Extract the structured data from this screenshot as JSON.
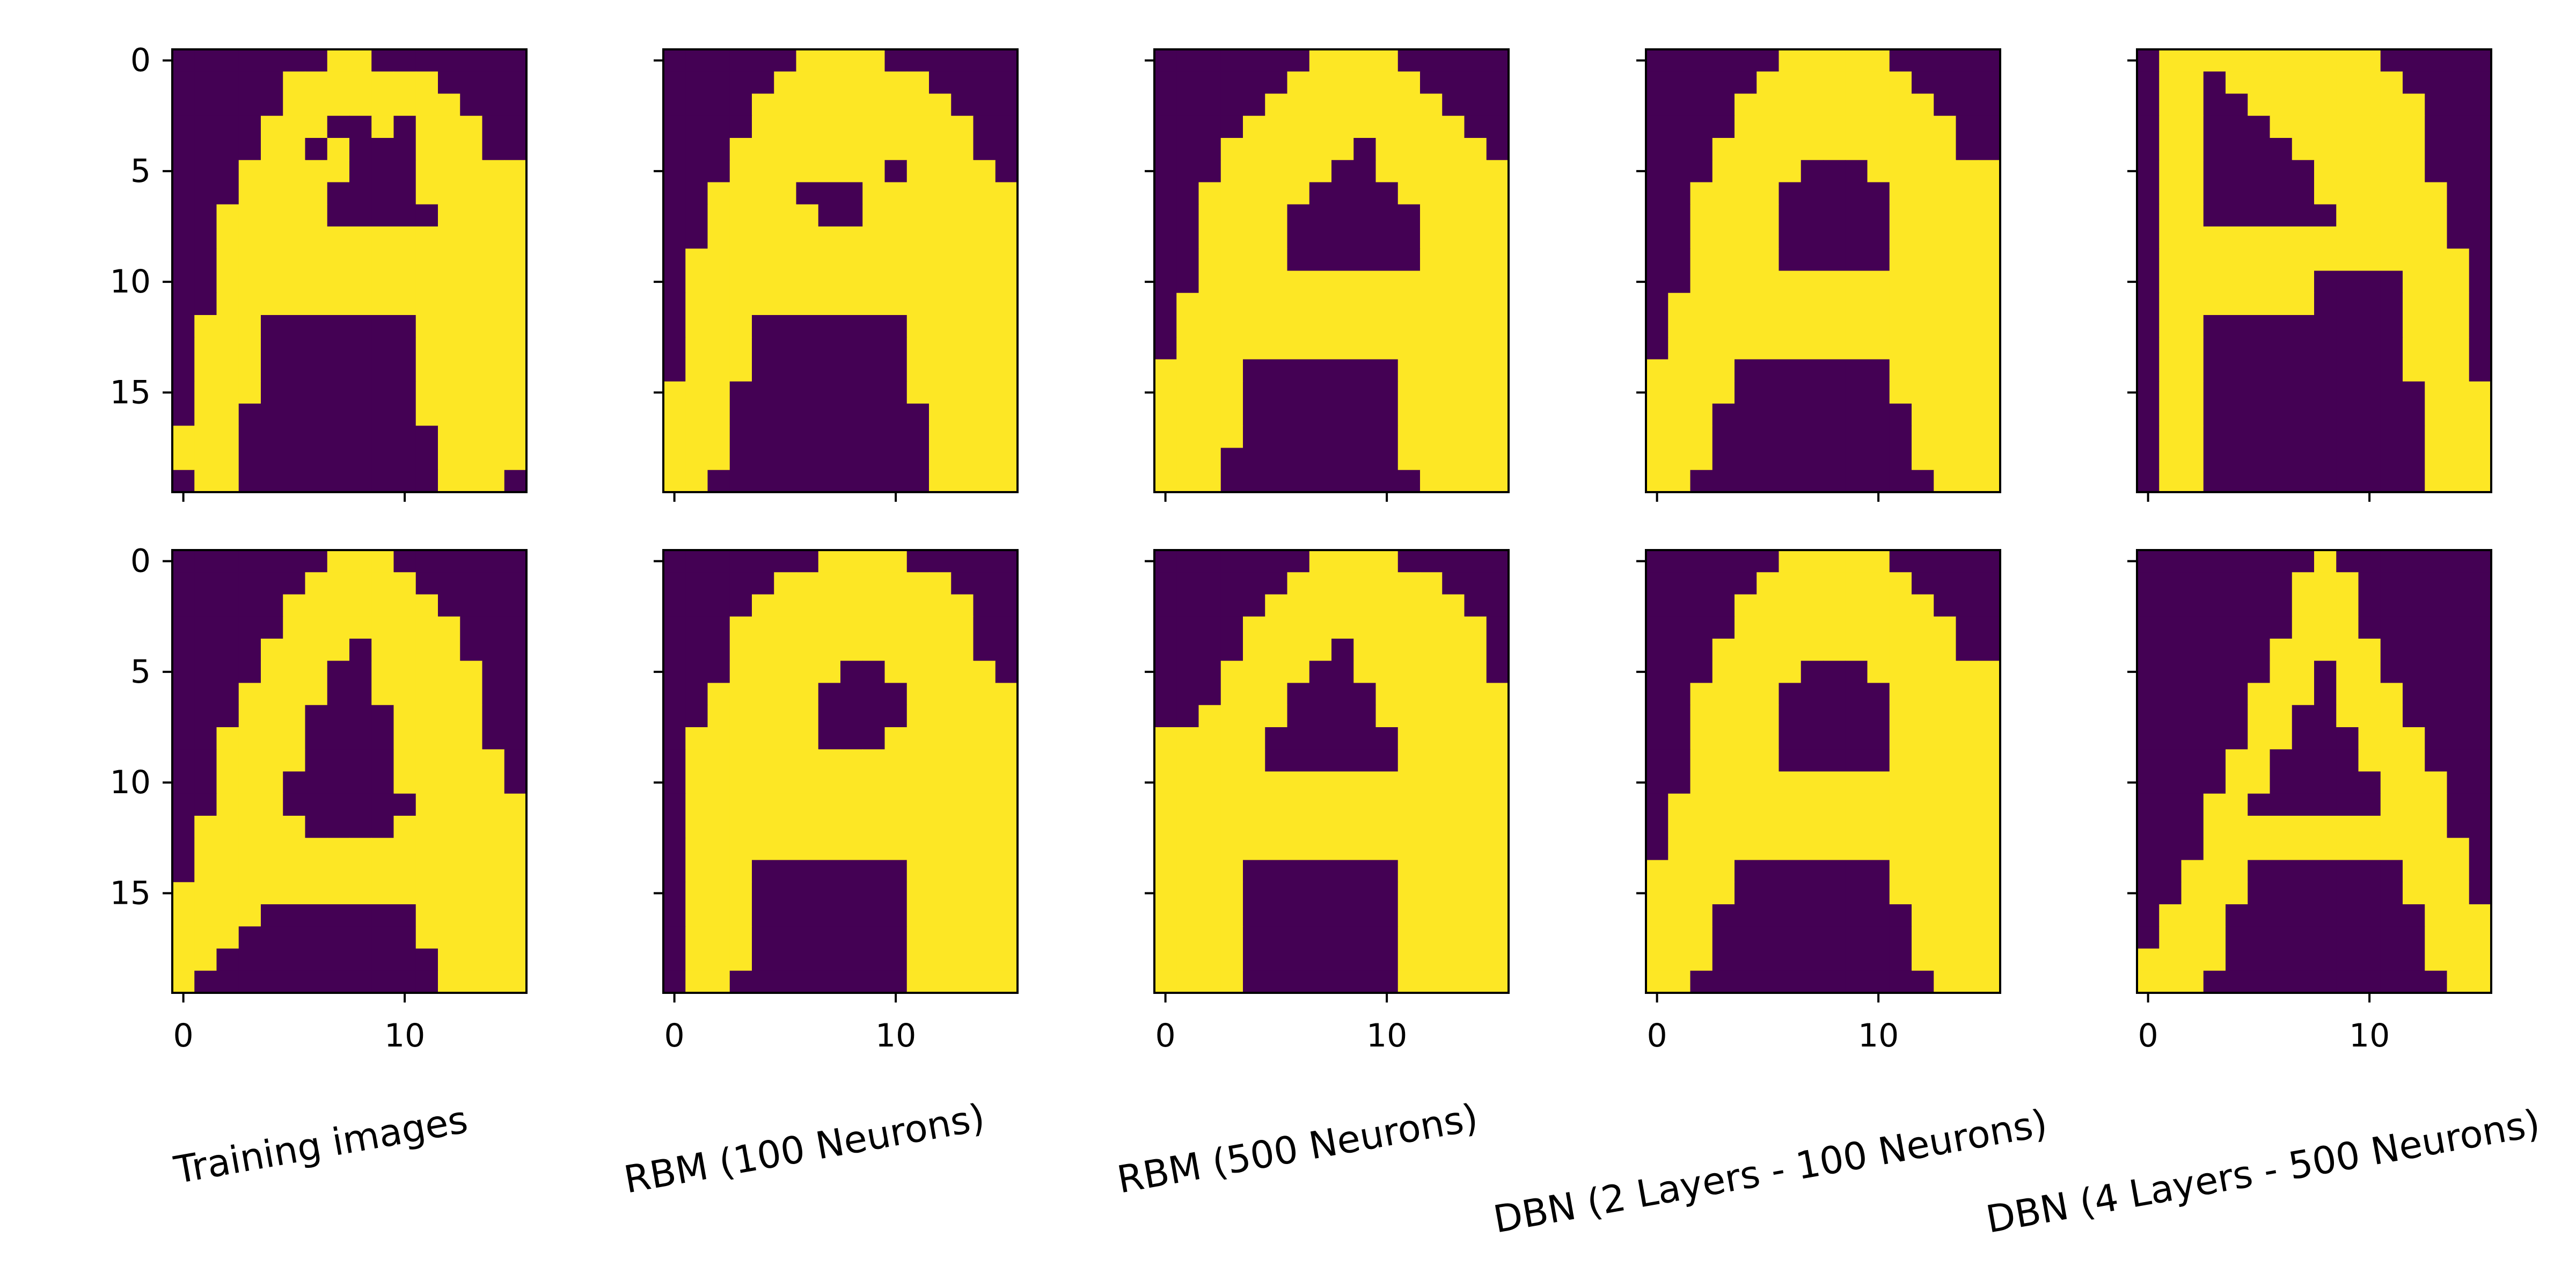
{
  "chart_data": {
    "type": "heatmap",
    "colormap": [
      "#440154",
      "#3b528b",
      "#21918c",
      "#5ec962",
      "#fde725"
    ],
    "value_range": [
      0,
      1
    ],
    "grid": false,
    "image_shape": [
      20,
      16
    ],
    "y_ticks": [
      "0",
      "5",
      "10",
      "15"
    ],
    "x_ticks": [
      "0",
      "10"
    ],
    "columns": [
      "Training images",
      "RBM (100 Neurons)",
      "RBM (500 Neurons)",
      "DBN (2 Layers - 100 Neurons)",
      "DBN (4 Layers - 500 Neurons)"
    ],
    "panels": [
      [
        {
          "rows": [
            "0000000110000000",
            "0000011111110000",
            "0000011111111000",
            "0000111001011100",
            "0000110100011100",
            "0001111100011111",
            "0001111000011111",
            "0011111000001111",
            "0011111111111111",
            "0011111111111111",
            "0011111111111111",
            "0011111111111111",
            "0111000000011111",
            "0111000000011111",
            "0111000000011111",
            "0111000000011111",
            "0110000000011111",
            "1110000000001111",
            "1110000000001111",
            "0110000000001110"
          ]
        },
        {
          "rows": [
            "0000001111000000",
            "0000011111110000",
            "0000111111111000",
            "0000111111111100",
            "0001111111111100",
            "0001111111011110",
            "0011110001111111",
            "0011111001111111",
            "0011111111111111",
            "0111111111111111",
            "0111111111111111",
            "0111111111111111",
            "0111000000011111",
            "0111000000011111",
            "0111000000011111",
            "1110000000011111",
            "1110000000001111",
            "1110000000001111",
            "1110000000001111",
            "1100000000001111"
          ]
        },
        {
          "rows": [
            "0000000111100000",
            "0000001111110000",
            "0000011111111000",
            "0000111111111100",
            "0001111110111110",
            "0001111100111111",
            "0011111000011111",
            "0011110000001111",
            "0011110000001111",
            "0011110000001111",
            "0011111111111111",
            "0111111111111111",
            "0111111111111111",
            "0111111111111111",
            "1111000000011111",
            "1111000000011111",
            "1111000000011111",
            "1111000000011111",
            "1110000000011111",
            "1110000000001111"
          ]
        },
        {
          "rows": [
            "0000001111100000",
            "0000011111110000",
            "0000111111111000",
            "0000111111111100",
            "0001111111111100",
            "0001111000111111",
            "0011110000011111",
            "0011110000011111",
            "0011110000011111",
            "0011110000011111",
            "0011111111111111",
            "0111111111111111",
            "0111111111111111",
            "0111111111111111",
            "1111000000011111",
            "1111000000011111",
            "1110000000001111",
            "1110000000001111",
            "1110000000001111",
            "1100000000000111"
          ]
        },
        {
          "rows": [
            "0111111111100000",
            "0110111111110000",
            "0110011111111000",
            "0110001111111000",
            "0110000111111000",
            "0110000011111000",
            "0110000011111100",
            "0110000001111100",
            "0111111111111100",
            "0111111111111110",
            "0111111100001110",
            "0111111100001110",
            "0110000000001110",
            "0110000000001110",
            "0110000000001110",
            "0110000000000111",
            "0110000000000111",
            "0110000000000111",
            "0110000000000111",
            "0110000000000111"
          ]
        }
      ],
      [
        {
          "rows": [
            "0000000111000000",
            "0000001111100000",
            "0000011111110000",
            "0000011111111000",
            "0000111101111000",
            "0000111001111100",
            "0001111001111100",
            "0001110000111100",
            "0011110000111100",
            "0011110000111110",
            "0011100000111110",
            "0011100000011111",
            "0111110000111111",
            "0111111111111111",
            "0111111111111111",
            "1111111111111111",
            "1111000000011111",
            "1110000000011111",
            "1100000000001111",
            "1000000000001111"
          ]
        },
        {
          "rows": [
            "0000000111100000",
            "0000011111111000",
            "0000111111111100",
            "0001111111111100",
            "0001111111111100",
            "0001111100111110",
            "0011111000011111",
            "0011111000011111",
            "0111111000111111",
            "0111111111111111",
            "0111111111111111",
            "0111111111111111",
            "0111111111111111",
            "0111111111111111",
            "0111000000011111",
            "0111000000011111",
            "0111000000011111",
            "0111000000011111",
            "0111000000011111",
            "0110000000011111"
          ]
        },
        {
          "rows": [
            "0000000111100000",
            "0000001111111000",
            "0000011111111100",
            "0000111111111110",
            "0000111101111110",
            "0001111001111110",
            "0001110000111111",
            "0011110000111111",
            "1111100000011111",
            "1111100000011111",
            "1111111111111111",
            "1111111111111111",
            "1111111111111111",
            "1111111111111111",
            "1111000000011111",
            "1111000000011111",
            "1111000000011111",
            "1111000000011111",
            "1111000000011111",
            "1111000000011111"
          ]
        },
        {
          "rows": [
            "0000001111100000",
            "0000011111110000",
            "0000111111111000",
            "0000111111111100",
            "0001111111111100",
            "0001111000111111",
            "0011110000011111",
            "0011110000011111",
            "0011110000011111",
            "0011110000011111",
            "0011111111111111",
            "0111111111111111",
            "0111111111111111",
            "0111111111111111",
            "1111000000011111",
            "1111000000011111",
            "1110000000001111",
            "1110000000001111",
            "1110000000001111",
            "1100000000000111"
          ]
        },
        {
          "rows": [
            "0000000010000000",
            "0000000111000000",
            "0000000111000000",
            "0000000111000000",
            "0000001111100000",
            "0000001101100000",
            "0000011101110000",
            "0000011001110000",
            "0000011000111000",
            "0000110000111000",
            "0000110000011100",
            "0001100000011100",
            "0001111111111100",
            "0001111111111110",
            "0011100000001110",
            "0011100000001110",
            "0111000000000111",
            "0111000000000111",
            "1111000000000111",
            "1110000000000011"
          ]
        }
      ]
    ]
  }
}
